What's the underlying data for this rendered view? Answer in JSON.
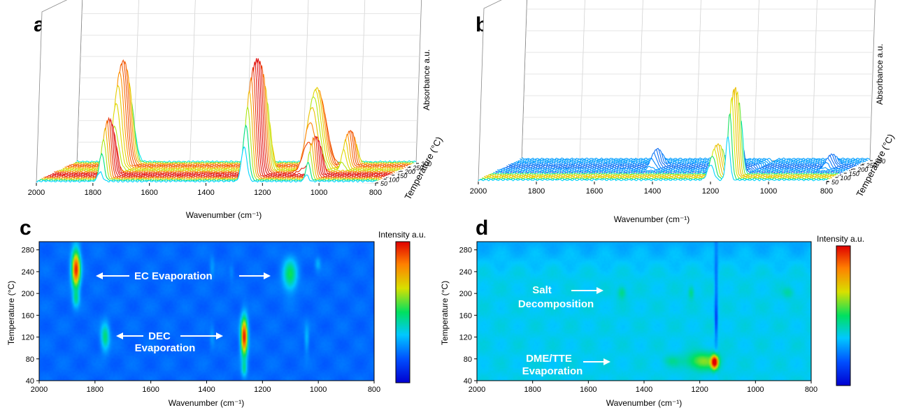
{
  "panel_labels": [
    "a",
    "b",
    "c",
    "d"
  ],
  "axis_texts": {
    "wavenumber": "Wavenumber (cm⁻¹)",
    "absorbance": "Absorbance a.u.",
    "temperature_3d": "Temperature (°C)",
    "temperature_2d": "Temperature (°C)",
    "intensity": "Intensity a.u."
  },
  "annotations": {
    "c": [
      {
        "text": "EC Evaporation"
      },
      {
        "text": "DEC"
      },
      {
        "text": "Evaporation"
      }
    ],
    "d": [
      {
        "text": "Salt"
      },
      {
        "text": "Decomposition"
      },
      {
        "text": "DME/TTE"
      },
      {
        "text": "Evaporation"
      }
    ]
  },
  "chart_data": [
    {
      "panel": "a",
      "type": "area",
      "view": "3d-waterfall",
      "xlabel": "Wavenumber (cm⁻¹)",
      "ylabel": "Temperature (°C)",
      "zlabel": "Absorbance a.u.",
      "xlim": [
        2000,
        800
      ],
      "x_ticks": [
        2000,
        1800,
        1600,
        1400,
        1200,
        1000,
        800
      ],
      "temperature_ticks": [
        50,
        100,
        150,
        200,
        250,
        300
      ],
      "temperature_range": [
        50,
        300
      ],
      "n_spectra": 24,
      "peaks": [
        {
          "center": 1805,
          "width": 20,
          "height": 0.72,
          "t_start": 190,
          "t_end": 300
        },
        {
          "center": 1775,
          "width": 12,
          "height": 0.4,
          "t_start": 60,
          "t_end": 150
        },
        {
          "center": 1265,
          "width": 14,
          "height": 0.8,
          "t_start": 50,
          "t_end": 210
        },
        {
          "center": 1100,
          "width": 28,
          "height": 0.55,
          "t_start": 160,
          "t_end": 260
        },
        {
          "center": 1045,
          "width": 10,
          "height": 0.28,
          "t_start": 60,
          "t_end": 150
        },
        {
          "center": 1000,
          "width": 12,
          "height": 0.25,
          "t_start": 200,
          "t_end": 280
        }
      ],
      "colormap": [
        "#0000b4",
        "#0070ff",
        "#00e8ff",
        "#00e070",
        "#d8e800",
        "#ff9000",
        "#e01010"
      ]
    },
    {
      "panel": "b",
      "type": "area",
      "view": "3d-waterfall",
      "xlabel": "Wavenumber (cm⁻¹)",
      "ylabel": "Temperature (°C)",
      "zlabel": "Absorbance a.u.",
      "xlim": [
        2000,
        800
      ],
      "x_ticks": [
        2000,
        1800,
        1600,
        1400,
        1200,
        1000,
        800
      ],
      "temperature_ticks": [
        50,
        100,
        150,
        200,
        250,
        300
      ],
      "temperature_range": [
        50,
        300
      ],
      "n_spectra": 24,
      "peaks": [
        {
          "center": 1140,
          "width": 10,
          "height": 0.62,
          "t_start": 50,
          "t_end": 130
        },
        {
          "center": 1200,
          "width": 15,
          "height": 0.22,
          "t_start": 50,
          "t_end": 130
        },
        {
          "center": 1480,
          "width": 14,
          "height": 0.12,
          "t_start": 180,
          "t_end": 240
        },
        {
          "center": 1240,
          "width": 10,
          "height": 0.08,
          "t_start": 180,
          "t_end": 240
        },
        {
          "center": 880,
          "width": 12,
          "height": 0.08,
          "t_start": 180,
          "t_end": 240
        },
        {
          "center": 1130,
          "width": 8,
          "height": -0.1,
          "t_start": 150,
          "t_end": 300
        }
      ],
      "colormap": [
        "#00b4ff",
        "#0088ff",
        "#2850e0",
        "#00e8ff",
        "#00e070",
        "#d8e800",
        "#ff9000",
        "#e01010"
      ]
    },
    {
      "panel": "c",
      "type": "heatmap",
      "xlabel": "Wavenumber (cm⁻¹)",
      "ylabel": "Temperature (°C)",
      "colorbar_label": "Intensity a.u.",
      "xlim": [
        2000,
        800
      ],
      "ylim": [
        40,
        295
      ],
      "x_ticks": [
        2000,
        1800,
        1600,
        1400,
        1200,
        1000,
        800
      ],
      "y_ticks": [
        40,
        80,
        120,
        160,
        200,
        240,
        280
      ],
      "background": 0.2,
      "blobs": [
        {
          "x": 1870,
          "y": 245,
          "sx": 15,
          "sy": 35,
          "amp": 0.75
        },
        {
          "x": 1870,
          "y": 190,
          "sx": 12,
          "sy": 15,
          "amp": 0.2
        },
        {
          "x": 1765,
          "y": 120,
          "sx": 15,
          "sy": 25,
          "amp": 0.28
        },
        {
          "x": 1265,
          "y": 120,
          "sx": 12,
          "sy": 35,
          "amp": 0.78
        },
        {
          "x": 1265,
          "y": 60,
          "sx": 10,
          "sy": 15,
          "amp": 0.2
        },
        {
          "x": 1100,
          "y": 235,
          "sx": 25,
          "sy": 30,
          "amp": 0.3
        },
        {
          "x": 1040,
          "y": 115,
          "sx": 8,
          "sy": 25,
          "amp": 0.12
        },
        {
          "x": 1000,
          "y": 255,
          "sx": 10,
          "sy": 12,
          "amp": 0.1
        },
        {
          "x": 1380,
          "y": 120,
          "sx": 8,
          "sy": 20,
          "amp": 0.07
        },
        {
          "x": 1380,
          "y": 250,
          "sx": 8,
          "sy": 20,
          "amp": 0.07
        },
        {
          "x": 1310,
          "y": 240,
          "sx": 8,
          "sy": 15,
          "amp": 0.05
        }
      ],
      "colormap": [
        "#0000d0",
        "#0050ff",
        "#00c8ff",
        "#00e060",
        "#d8e000",
        "#ff8000",
        "#e00000"
      ]
    },
    {
      "panel": "d",
      "type": "heatmap",
      "xlabel": "Wavenumber (cm⁻¹)",
      "ylabel": "Temperature (°C)",
      "colorbar_label": "Intensity a.u.",
      "xlim": [
        2000,
        800
      ],
      "ylim": [
        40,
        295
      ],
      "x_ticks": [
        2000,
        1800,
        1600,
        1400,
        1200,
        1000,
        800
      ],
      "y_ticks": [
        40,
        80,
        120,
        160,
        200,
        240,
        280
      ],
      "background": 0.35,
      "blobs": [
        {
          "x": 1145,
          "y": 73,
          "sx": 12,
          "sy": 12,
          "amp": 0.7
        },
        {
          "x": 1190,
          "y": 75,
          "sx": 55,
          "sy": 16,
          "amp": 0.25
        },
        {
          "x": 1300,
          "y": 75,
          "sx": 30,
          "sy": 10,
          "amp": 0.08
        },
        {
          "x": 1480,
          "y": 202,
          "sx": 15,
          "sy": 12,
          "amp": 0.12
        },
        {
          "x": 1230,
          "y": 202,
          "sx": 10,
          "sy": 12,
          "amp": 0.12
        },
        {
          "x": 880,
          "y": 202,
          "sx": 20,
          "sy": 10,
          "amp": 0.08
        },
        {
          "x": 1140,
          "y": 200,
          "sx": 6,
          "sy": 110,
          "amp": -0.15
        },
        {
          "x": 1140,
          "y": 150,
          "sx": 5,
          "sy": 25,
          "amp": -0.12
        }
      ],
      "colormap": [
        "#0000d0",
        "#0050ff",
        "#00c8ff",
        "#00e060",
        "#d8e000",
        "#ff8000",
        "#e00000"
      ]
    }
  ]
}
